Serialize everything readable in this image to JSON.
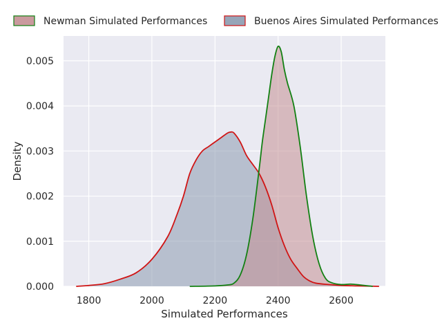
{
  "chart_data": {
    "type": "area",
    "title": "",
    "xlabel": "Simulated Performances",
    "ylabel": "Density",
    "xlim": [
      1720,
      2740
    ],
    "ylim": [
      0,
      0.00555
    ],
    "xticks": [
      1800,
      2000,
      2200,
      2400,
      2600
    ],
    "yticks": [
      0.0,
      0.001,
      0.002,
      0.003,
      0.004,
      0.005
    ],
    "ytick_labels": [
      "0.000",
      "0.001",
      "0.002",
      "0.003",
      "0.004",
      "0.005"
    ],
    "grid": true,
    "legend_position": "top, outside plot",
    "colors": {
      "plot_background": "#eaeaf2",
      "grid": "#ffffff"
    },
    "series": [
      {
        "name": "Newman Simulated Performances",
        "fill": "#c48f94",
        "line": "#128012",
        "x": [
          2120,
          2200,
          2240,
          2260,
          2280,
          2300,
          2320,
          2340,
          2350,
          2360,
          2370,
          2380,
          2390,
          2400,
          2410,
          2420,
          2430,
          2450,
          2470,
          2490,
          2510,
          2530,
          2550,
          2570,
          2600,
          2630,
          2660,
          2700
        ],
        "y": [
          0.0,
          1e-05,
          3e-05,
          7e-05,
          0.00025,
          0.0007,
          0.0015,
          0.0026,
          0.0032,
          0.0037,
          0.0042,
          0.0047,
          0.0051,
          0.00532,
          0.0052,
          0.0048,
          0.0045,
          0.004,
          0.0031,
          0.002,
          0.0011,
          0.0005,
          0.00018,
          8e-05,
          4e-05,
          5e-05,
          3e-05,
          0.0
        ]
      },
      {
        "name": "Buenos Aires Simulated Performances",
        "fill": "#8c9bb0",
        "line": "#d01414",
        "x": [
          1760,
          1800,
          1850,
          1900,
          1950,
          2000,
          2050,
          2080,
          2100,
          2120,
          2140,
          2160,
          2180,
          2200,
          2220,
          2240,
          2250,
          2260,
          2280,
          2300,
          2320,
          2340,
          2360,
          2380,
          2400,
          2420,
          2440,
          2460,
          2480,
          2500,
          2520,
          2560,
          2600,
          2650,
          2720
        ],
        "y": [
          0.0,
          2e-05,
          6e-05,
          0.00016,
          0.0003,
          0.0006,
          0.0011,
          0.0016,
          0.002,
          0.0025,
          0.0028,
          0.003,
          0.0031,
          0.0032,
          0.0033,
          0.0034,
          0.00342,
          0.0034,
          0.0032,
          0.0029,
          0.0027,
          0.0025,
          0.0022,
          0.0018,
          0.0013,
          0.0009,
          0.0006,
          0.0004,
          0.00022,
          0.00012,
          7e-05,
          4e-05,
          2e-05,
          1e-05,
          0.0
        ]
      }
    ]
  }
}
